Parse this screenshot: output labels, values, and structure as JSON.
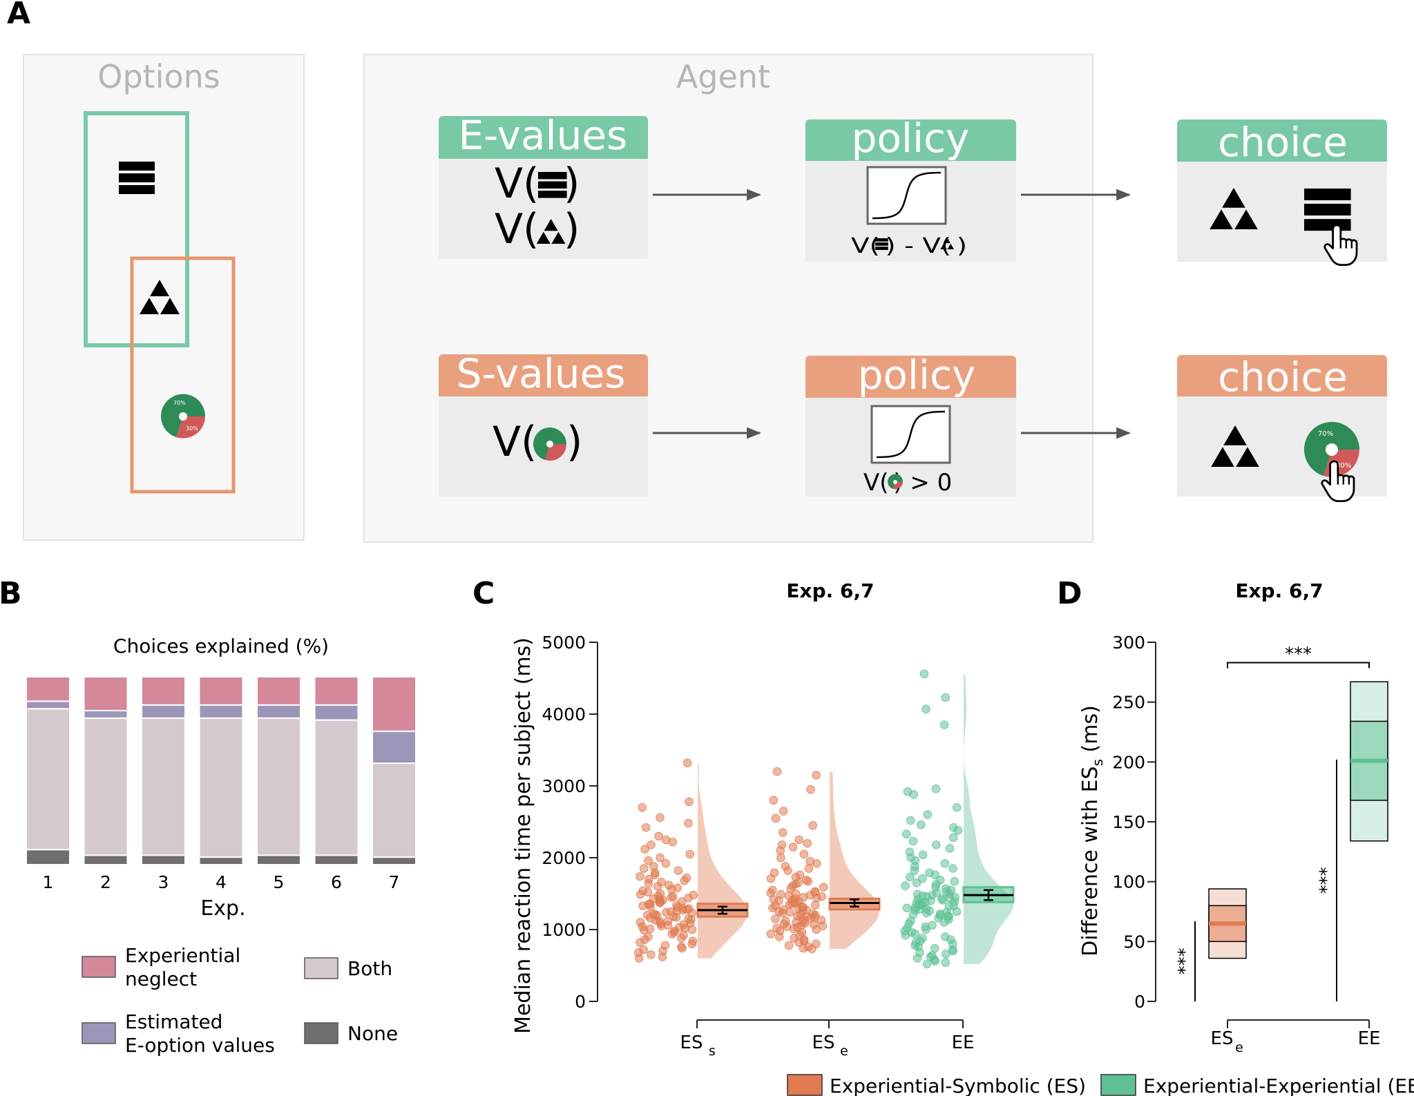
{
  "panel_a": {
    "letter": "A",
    "options_title": "Options",
    "agent_title": "Agent",
    "e_values_label": "E-values",
    "s_values_label": "S-values",
    "policy_label": "policy",
    "choice_label": "choice",
    "formula_v_open": "V(",
    "formula_v_close": ")",
    "policy_e_formula": "V( ) - V( )",
    "policy_s_formula": "V( ) > 0",
    "pie_big": "70%",
    "pie_small": "30%",
    "colors": {
      "green": "#79c9a7",
      "orange": "#e9a07f",
      "box_bg": "#ececec",
      "panel_bg": "#f7f7f7",
      "green_frame": "#79c9a7",
      "orange_frame": "#e69670",
      "pie_green": "#2e8b57",
      "pie_red": "#d05a5a"
    },
    "icons": [
      "stack-icon",
      "triangles-icon",
      "pie-icon",
      "hand-cursor-icon",
      "sigmoid-icon",
      "arrow-icon"
    ]
  },
  "panel_b": {
    "letter": "B",
    "xlabel": "Exp.",
    "legend": [
      {
        "label_lines": [
          "Experiential",
          "neglect"
        ],
        "color": "#d4889a"
      },
      {
        "label_lines": [
          "Both"
        ],
        "color": "#d5c9d0"
      },
      {
        "label_lines": [
          "Estimated",
          "E-option values"
        ],
        "color": "#9b96b8"
      },
      {
        "label_lines": [
          "None"
        ],
        "color": "#6e6e73"
      }
    ]
  },
  "panel_c": {
    "letter": "C",
    "title": "Exp. 6,7",
    "legend": [
      {
        "label": "Experiential-Symbolic (ES)",
        "color": "#e07b52"
      },
      {
        "label": "Experiential-Experiential (EE)",
        "color": "#5fc196"
      }
    ]
  },
  "panel_d": {
    "letter": "D",
    "title": "Exp. 6,7",
    "significance": "***"
  },
  "chart_data": [
    {
      "panel": "B",
      "type": "bar",
      "stacked": true,
      "title": "Choices explained (%)",
      "xlabel": "Exp.",
      "ylabel": "",
      "categories": [
        "1",
        "2",
        "3",
        "4",
        "5",
        "6",
        "7"
      ],
      "series": [
        {
          "name": "None",
          "color": "#6e6e73",
          "values": [
            8,
            5,
            5,
            4,
            5,
            5,
            4
          ]
        },
        {
          "name": "Both",
          "color": "#d5c9d0",
          "values": [
            75,
            73,
            73,
            74,
            73,
            72,
            50
          ]
        },
        {
          "name": "Estimated E-option values",
          "color": "#9b96b8",
          "values": [
            4,
            4,
            7,
            7,
            7,
            8,
            17
          ]
        },
        {
          "name": "Experiential neglect",
          "color": "#d4889a",
          "values": [
            13,
            18,
            15,
            15,
            15,
            15,
            29
          ]
        }
      ],
      "ylim": [
        0,
        100
      ]
    },
    {
      "panel": "C",
      "type": "scatter",
      "subtype": "raincloud",
      "title": "Exp. 6,7",
      "ylabel": "Median reaction time per subject (ms)",
      "xlabel": "",
      "ylim": [
        0,
        5000
      ],
      "yticks": [
        0,
        1000,
        2000,
        3000,
        4000,
        5000
      ],
      "categories": [
        {
          "label": "ES",
          "subscript": "s",
          "group": "ES",
          "color": "#e07b52",
          "mean": 1270,
          "sem": 50,
          "box_low": 1180,
          "box_high": 1360,
          "min": 600,
          "max": 3320,
          "points": [
            3320,
            2780,
            2700,
            2560,
            2480,
            2420,
            2300,
            2250,
            2220,
            2180,
            2120,
            2050,
            2000,
            1960,
            1920,
            1880,
            1850,
            1820,
            1790,
            1760,
            1740,
            1720,
            1700,
            1680,
            1660,
            1640,
            1620,
            1600,
            1580,
            1560,
            1540,
            1520,
            1500,
            1490,
            1480,
            1470,
            1460,
            1450,
            1440,
            1430,
            1420,
            1410,
            1400,
            1390,
            1380,
            1370,
            1360,
            1350,
            1340,
            1330,
            1320,
            1310,
            1300,
            1290,
            1280,
            1270,
            1260,
            1250,
            1240,
            1230,
            1220,
            1210,
            1200,
            1190,
            1180,
            1170,
            1160,
            1150,
            1140,
            1130,
            1120,
            1110,
            1100,
            1090,
            1080,
            1070,
            1060,
            1050,
            1040,
            1030,
            1020,
            1010,
            1000,
            990,
            980,
            960,
            940,
            920,
            900,
            880,
            860,
            840,
            820,
            800,
            780,
            760,
            740,
            720,
            700,
            680,
            650,
            620,
            600
          ]
        },
        {
          "label": "ES",
          "subscript": "e",
          "group": "ES",
          "color": "#e07b52",
          "mean": 1370,
          "sem": 50,
          "box_low": 1280,
          "box_high": 1430,
          "min": 730,
          "max": 3200,
          "points": [
            3200,
            3150,
            2950,
            2800,
            2650,
            2550,
            2450,
            2350,
            2250,
            2200,
            2180,
            2150,
            2100,
            2050,
            2000,
            1950,
            1920,
            1880,
            1850,
            1820,
            1790,
            1760,
            1730,
            1710,
            1690,
            1670,
            1650,
            1630,
            1610,
            1590,
            1570,
            1550,
            1530,
            1520,
            1510,
            1500,
            1490,
            1480,
            1470,
            1460,
            1450,
            1440,
            1430,
            1420,
            1410,
            1400,
            1390,
            1380,
            1370,
            1360,
            1350,
            1340,
            1330,
            1320,
            1310,
            1300,
            1290,
            1280,
            1270,
            1260,
            1250,
            1240,
            1230,
            1220,
            1210,
            1200,
            1190,
            1180,
            1170,
            1160,
            1150,
            1140,
            1130,
            1120,
            1110,
            1100,
            1090,
            1080,
            1070,
            1060,
            1050,
            1040,
            1030,
            1020,
            1010,
            1000,
            980,
            960,
            940,
            920,
            900,
            880,
            860,
            840,
            820,
            800,
            780,
            760,
            740,
            730
          ]
        },
        {
          "label": "EE",
          "subscript": "",
          "group": "EE",
          "color": "#5fc196",
          "mean": 1480,
          "sem": 70,
          "box_low": 1380,
          "box_high": 1590,
          "min": 520,
          "max": 4560,
          "points": [
            4560,
            4230,
            4070,
            3850,
            2960,
            2920,
            2880,
            2700,
            2600,
            2520,
            2460,
            2420,
            2380,
            2330,
            2280,
            2230,
            2180,
            2130,
            2080,
            2040,
            2000,
            1960,
            1920,
            1880,
            1850,
            1820,
            1790,
            1760,
            1730,
            1710,
            1690,
            1670,
            1650,
            1630,
            1610,
            1590,
            1570,
            1550,
            1530,
            1510,
            1500,
            1490,
            1480,
            1470,
            1460,
            1450,
            1440,
            1430,
            1420,
            1410,
            1400,
            1390,
            1380,
            1370,
            1360,
            1350,
            1340,
            1330,
            1320,
            1310,
            1300,
            1290,
            1280,
            1270,
            1260,
            1250,
            1240,
            1230,
            1220,
            1210,
            1200,
            1190,
            1180,
            1160,
            1140,
            1120,
            1100,
            1080,
            1060,
            1040,
            1020,
            1000,
            980,
            960,
            940,
            920,
            900,
            880,
            860,
            840,
            820,
            800,
            780,
            760,
            740,
            720,
            700,
            680,
            660,
            640,
            620,
            600,
            580,
            560,
            540,
            520
          ]
        }
      ]
    },
    {
      "panel": "D",
      "type": "bar",
      "subtype": "floating-box",
      "title": "Exp. 6,7",
      "ylabel": "Difference with ES",
      "ylabel_subscript": "s",
      "ylabel_unit": " (ms)",
      "ylim": [
        0,
        300
      ],
      "yticks": [
        0,
        50,
        100,
        150,
        200,
        250,
        300
      ],
      "categories": [
        {
          "label": "ES",
          "subscript": "e",
          "color": "#e07b52",
          "mean": 65,
          "ci_low": 50,
          "ci_high": 80,
          "range_low": 36,
          "range_high": 94
        },
        {
          "label": "EE",
          "subscript": "",
          "color": "#5fc196",
          "mean": 201,
          "ci_low": 168,
          "ci_high": 234,
          "range_low": 134,
          "range_high": 267
        }
      ],
      "annotations": [
        {
          "text": "***",
          "between": [
            "ES_e",
            "EE"
          ]
        },
        {
          "text": "***",
          "target": "ES_e",
          "vs": "zero"
        },
        {
          "text": "***",
          "target": "EE",
          "vs": "zero"
        }
      ]
    }
  ]
}
